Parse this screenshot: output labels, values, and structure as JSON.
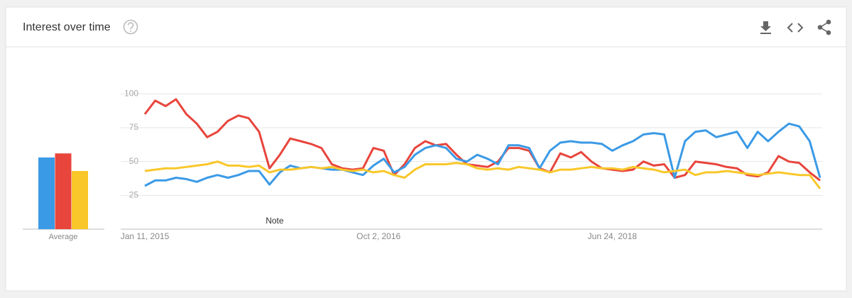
{
  "chart_data": {
    "type": "line",
    "title": "Interest over time",
    "annotation": {
      "text": "Note",
      "x": "2015-12-27"
    },
    "average": {
      "label": "Average",
      "values": [
        53,
        56,
        43
      ]
    },
    "x": [
      "2015-01-11",
      "2015-02-08",
      "2015-03-08",
      "2015-04-05",
      "2015-05-03",
      "2015-05-31",
      "2015-06-28",
      "2015-07-26",
      "2015-08-23",
      "2015-09-20",
      "2015-10-18",
      "2015-11-15",
      "2015-12-13",
      "2016-01-10",
      "2016-02-07",
      "2016-03-06",
      "2016-04-03",
      "2016-05-01",
      "2016-05-29",
      "2016-06-26",
      "2016-07-24",
      "2016-08-21",
      "2016-09-18",
      "2016-10-16",
      "2016-11-13",
      "2016-12-11",
      "2017-01-08",
      "2017-02-05",
      "2017-03-05",
      "2017-04-02",
      "2017-04-30",
      "2017-05-28",
      "2017-06-25",
      "2017-07-23",
      "2017-08-20",
      "2017-09-17",
      "2017-10-15",
      "2017-11-12",
      "2017-12-10",
      "2018-01-07",
      "2018-02-04",
      "2018-03-04",
      "2018-04-01",
      "2018-04-29",
      "2018-05-27",
      "2018-06-24",
      "2018-07-22",
      "2018-08-19",
      "2018-09-16",
      "2018-10-14",
      "2018-11-11",
      "2018-12-09",
      "2019-01-06",
      "2019-02-03",
      "2019-03-03",
      "2019-03-31",
      "2019-04-28",
      "2019-05-26",
      "2019-06-23",
      "2019-07-21",
      "2019-08-18",
      "2019-09-15",
      "2019-10-13",
      "2019-11-10",
      "2019-12-08",
      "2020-01-05"
    ],
    "series": [
      {
        "color": "#3b9ae6",
        "values": [
          32,
          36,
          36,
          38,
          37,
          35,
          38,
          40,
          38,
          40,
          43,
          43,
          33,
          42,
          47,
          45,
          46,
          45,
          44,
          44,
          42,
          40,
          47,
          52,
          42,
          46,
          55,
          60,
          62,
          60,
          52,
          50,
          55,
          52,
          48,
          62,
          62,
          60,
          45,
          58,
          64,
          65,
          64,
          64,
          63,
          58,
          62,
          65,
          70,
          71,
          70,
          38,
          65,
          72,
          73,
          68,
          70,
          72,
          60,
          72,
          65,
          72,
          78,
          76,
          65,
          38
        ]
      },
      {
        "color": "#e8453c",
        "values": [
          85,
          95,
          91,
          96,
          85,
          78,
          68,
          72,
          80,
          84,
          82,
          72,
          45,
          55,
          67,
          65,
          63,
          60,
          48,
          45,
          44,
          45,
          60,
          58,
          40,
          48,
          60,
          65,
          62,
          63,
          55,
          48,
          47,
          46,
          50,
          60,
          60,
          58,
          45,
          42,
          56,
          53,
          57,
          50,
          45,
          44,
          43,
          44,
          50,
          47,
          48,
          38,
          40,
          50,
          49,
          48,
          46,
          45,
          40,
          39,
          42,
          54,
          50,
          49,
          42,
          36
        ]
      },
      {
        "color": "#f9c72a",
        "values": [
          43,
          44,
          45,
          45,
          46,
          47,
          48,
          50,
          47,
          47,
          46,
          47,
          42,
          44,
          44,
          45,
          46,
          45,
          46,
          44,
          43,
          44,
          42,
          43,
          40,
          38,
          44,
          48,
          48,
          48,
          49,
          48,
          45,
          44,
          45,
          44,
          46,
          45,
          44,
          42,
          44,
          44,
          45,
          46,
          45,
          45,
          44,
          46,
          45,
          44,
          42,
          43,
          44,
          40,
          42,
          42,
          43,
          42,
          41,
          40,
          41,
          42,
          41,
          40,
          40,
          30
        ]
      }
    ],
    "xlim": [
      "2015-01-11",
      "2020-01-05"
    ],
    "xticks": [
      {
        "value": "2015-01-11",
        "label": "Jan 11, 2015"
      },
      {
        "value": "2016-10-02",
        "label": "Oct 2, 2016"
      },
      {
        "value": "2018-06-24",
        "label": "Jun 24, 2018"
      }
    ],
    "ylim": [
      0,
      100
    ],
    "yticks": [
      25,
      50,
      75,
      100
    ],
    "grid": true
  }
}
